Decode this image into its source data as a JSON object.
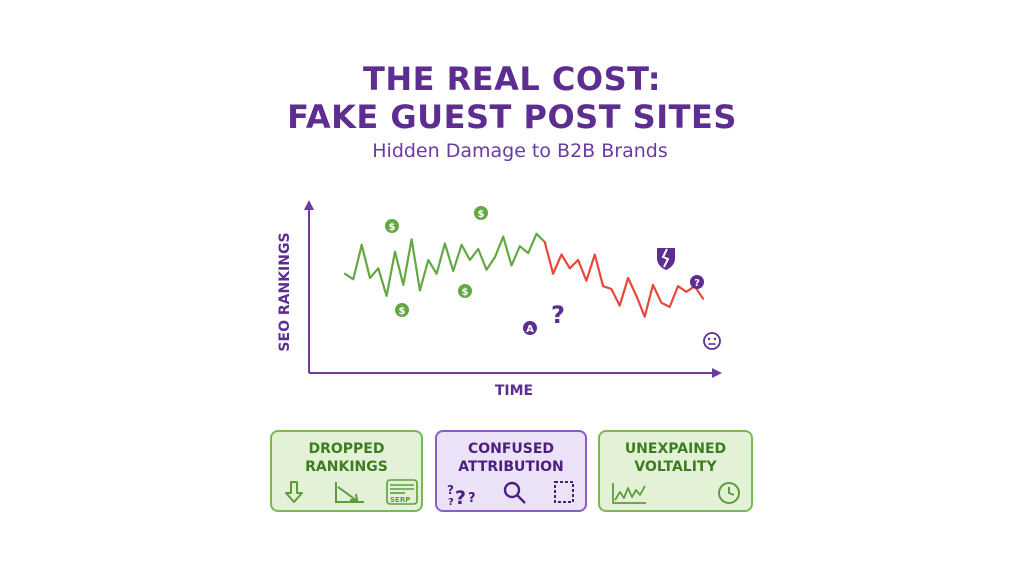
{
  "header": {
    "title_line1": "THE REAL COST:",
    "title_line2": "FAKE GUEST POST SITES",
    "subtitle": "Hidden Damage to B2B Brands"
  },
  "chart_data": {
    "type": "line",
    "title": "THE REAL COST: FAKE GUEST POST SITES",
    "subtitle": "Hidden Damage to B2B Brands",
    "xlabel": "TIME",
    "ylabel": "SEO RANKINGS",
    "grid": false,
    "legend": "none",
    "xlim": [
      0,
      43
    ],
    "ylim": [
      0,
      100
    ],
    "series": [
      {
        "color": "#63a845",
        "x": [
          0,
          1,
          2,
          3,
          4,
          5,
          6,
          7,
          8,
          9,
          10,
          11,
          12,
          13,
          14,
          15,
          16,
          17,
          18,
          19,
          20,
          21,
          22,
          23,
          24
        ],
        "values": [
          61,
          57,
          82,
          58,
          65,
          45,
          77,
          53,
          86,
          49,
          71,
          61,
          83,
          63,
          82,
          71,
          79,
          64,
          73,
          88,
          67,
          81,
          76,
          90,
          84
        ]
      },
      {
        "color": "#e8473a",
        "x": [
          24,
          25,
          26,
          27,
          28,
          29,
          30,
          31,
          32,
          33,
          34,
          35,
          36,
          37,
          38,
          39,
          40,
          41,
          42,
          43
        ],
        "values": [
          84,
          61,
          75,
          65,
          71,
          56,
          75,
          52,
          50,
          38,
          58,
          45,
          30,
          53,
          40,
          37,
          52,
          48,
          52,
          43
        ]
      }
    ],
    "annotations": [
      {
        "label": "$",
        "icon": "dollar-coin-icon",
        "color": "#63a845"
      },
      {
        "label": "$",
        "icon": "dollar-coin-icon",
        "color": "#63a845"
      },
      {
        "label": "$",
        "icon": "dollar-coin-icon",
        "color": "#63a845"
      },
      {
        "label": "$",
        "icon": "dollar-coin-icon",
        "color": "#63a845"
      },
      {
        "label": "A",
        "icon": "letter-badge-icon",
        "color": "#5e2d91"
      },
      {
        "label": "?",
        "icon": "question-mark-icon",
        "color": "#5e2d91"
      },
      {
        "label": "",
        "icon": "broken-shield-icon",
        "color": "#5e2d91"
      },
      {
        "label": "?",
        "icon": "question-badge-icon",
        "color": "#5e2d91"
      },
      {
        "label": "",
        "icon": "neutral-face-icon",
        "color": "#5e2d91"
      }
    ]
  },
  "cards": [
    {
      "line1": "DROPPED",
      "line2": "RANKINGS",
      "theme": "green",
      "icons": [
        "down-arrow-icon",
        "declining-trend-icon",
        "serp-page-icon"
      ],
      "serp_label": "SERP"
    },
    {
      "line1": "CONFUSED",
      "line2": "ATTRIBUTION",
      "theme": "purple",
      "icons": [
        "question-marks-icon",
        "magnifier-icon",
        "dashed-frame-icon"
      ]
    },
    {
      "line1": "UNEXPAINED",
      "line2": "VOLTALITY",
      "theme": "green",
      "icons": [
        "volatile-line-icon",
        "clock-icon"
      ]
    }
  ],
  "colors": {
    "title": "#5e2d91",
    "positive": "#63a845",
    "negative": "#e8473a",
    "axis": "#6c3aa3"
  }
}
